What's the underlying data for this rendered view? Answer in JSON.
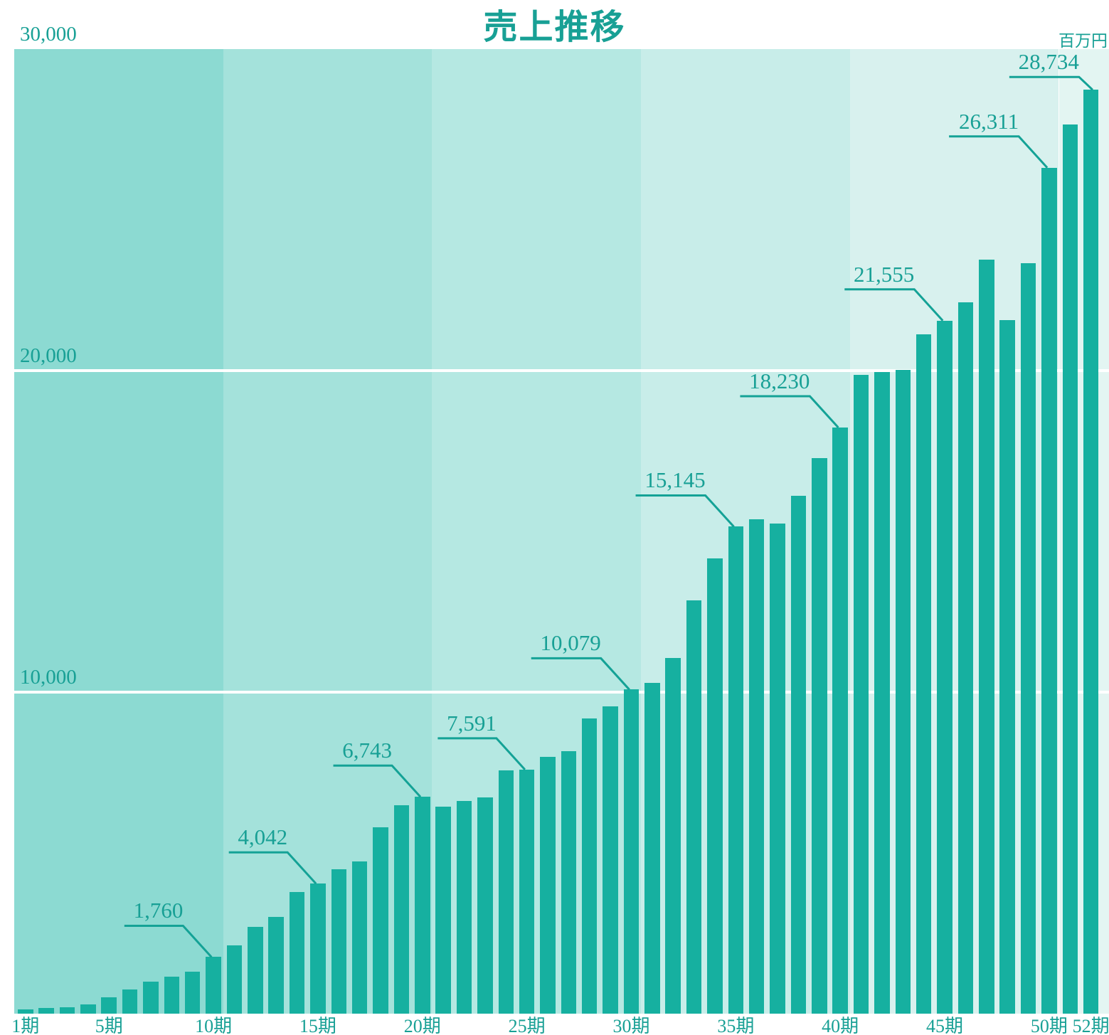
{
  "title": "売上推移",
  "unit_label": "百万円",
  "chart_data": {
    "type": "bar",
    "title": "売上推移",
    "unit": "百万円",
    "xlabel": "期 (fiscal period)",
    "ylabel": "売上 (百万円)",
    "ylim": [
      0,
      30000
    ],
    "grid": "horizontal white lines at 10,000 and 20,000",
    "legend": "none",
    "categories": [
      "1期",
      "2期",
      "3期",
      "4期",
      "5期",
      "6期",
      "7期",
      "8期",
      "9期",
      "10期",
      "11期",
      "12期",
      "13期",
      "14期",
      "15期",
      "16期",
      "17期",
      "18期",
      "19期",
      "20期",
      "21期",
      "22期",
      "23期",
      "24期",
      "25期",
      "26期",
      "27期",
      "28期",
      "29期",
      "30期",
      "31期",
      "32期",
      "33期",
      "34期",
      "35期",
      "36期",
      "37期",
      "38期",
      "39期",
      "40期",
      "41期",
      "42期",
      "43期",
      "44期",
      "45期",
      "46期",
      "47期",
      "48期",
      "49期",
      "50期",
      "51期",
      "52期"
    ],
    "values": [
      130,
      185,
      200,
      290,
      510,
      760,
      1000,
      1150,
      1310,
      1760,
      2120,
      2700,
      3010,
      3780,
      4042,
      4490,
      4730,
      5800,
      6490,
      6743,
      6440,
      6610,
      6720,
      7560,
      7591,
      7990,
      8160,
      9180,
      9560,
      10079,
      10290,
      11060,
      12850,
      14160,
      15145,
      15370,
      15250,
      16110,
      17280,
      18230,
      19860,
      19950,
      20020,
      21120,
      21555,
      22120,
      23460,
      21580,
      23350,
      26311,
      27650,
      28734
    ],
    "callouts": [
      {
        "period": 10,
        "label": "1,760",
        "value": 1760
      },
      {
        "period": 15,
        "label": "4,042",
        "value": 4042
      },
      {
        "period": 20,
        "label": "6,743",
        "value": 6743
      },
      {
        "period": 25,
        "label": "7,591",
        "value": 7591
      },
      {
        "period": 30,
        "label": "10,079",
        "value": 10079
      },
      {
        "period": 35,
        "label": "15,145",
        "value": 15145
      },
      {
        "period": 40,
        "label": "18,230",
        "value": 18230
      },
      {
        "period": 45,
        "label": "21,555",
        "value": 21555
      },
      {
        "period": 50,
        "label": "26,311",
        "value": 26311
      },
      {
        "period": 52,
        "label": "28,734",
        "value": 28734
      }
    ],
    "y_ticks": [
      {
        "value": 30000,
        "label": "30,000",
        "gridline": false
      },
      {
        "value": 20000,
        "label": "20,000",
        "gridline": true
      },
      {
        "value": 10000,
        "label": "10,000",
        "gridline": true
      }
    ],
    "x_ticks": [
      {
        "period": 1,
        "label": "1期"
      },
      {
        "period": 5,
        "label": "5期"
      },
      {
        "period": 10,
        "label": "10期"
      },
      {
        "period": 15,
        "label": "15期"
      },
      {
        "period": 20,
        "label": "20期"
      },
      {
        "period": 25,
        "label": "25期"
      },
      {
        "period": 30,
        "label": "30期"
      },
      {
        "period": 35,
        "label": "35期"
      },
      {
        "period": 40,
        "label": "40期"
      },
      {
        "period": 45,
        "label": "45期"
      },
      {
        "period": 50,
        "label": "50期"
      },
      {
        "period": 52,
        "label": "52期"
      }
    ],
    "background_bands": [
      {
        "periods": "1-10",
        "color": "#8cdad2"
      },
      {
        "periods": "11-20",
        "color": "#a4e2db"
      },
      {
        "periods": "21-30",
        "color": "#b5e8e2"
      },
      {
        "periods": "31-40",
        "color": "#c8ede9"
      },
      {
        "periods": "41-50",
        "color": "#d8f1ee"
      },
      {
        "periods": "51-52",
        "color": "#e3f5f2"
      }
    ],
    "colors": {
      "bar": "#16b0a0",
      "text": "#18a095",
      "connector_line": "#14a296",
      "gridline": "#ffffff",
      "page_background": "#ffffff"
    }
  }
}
